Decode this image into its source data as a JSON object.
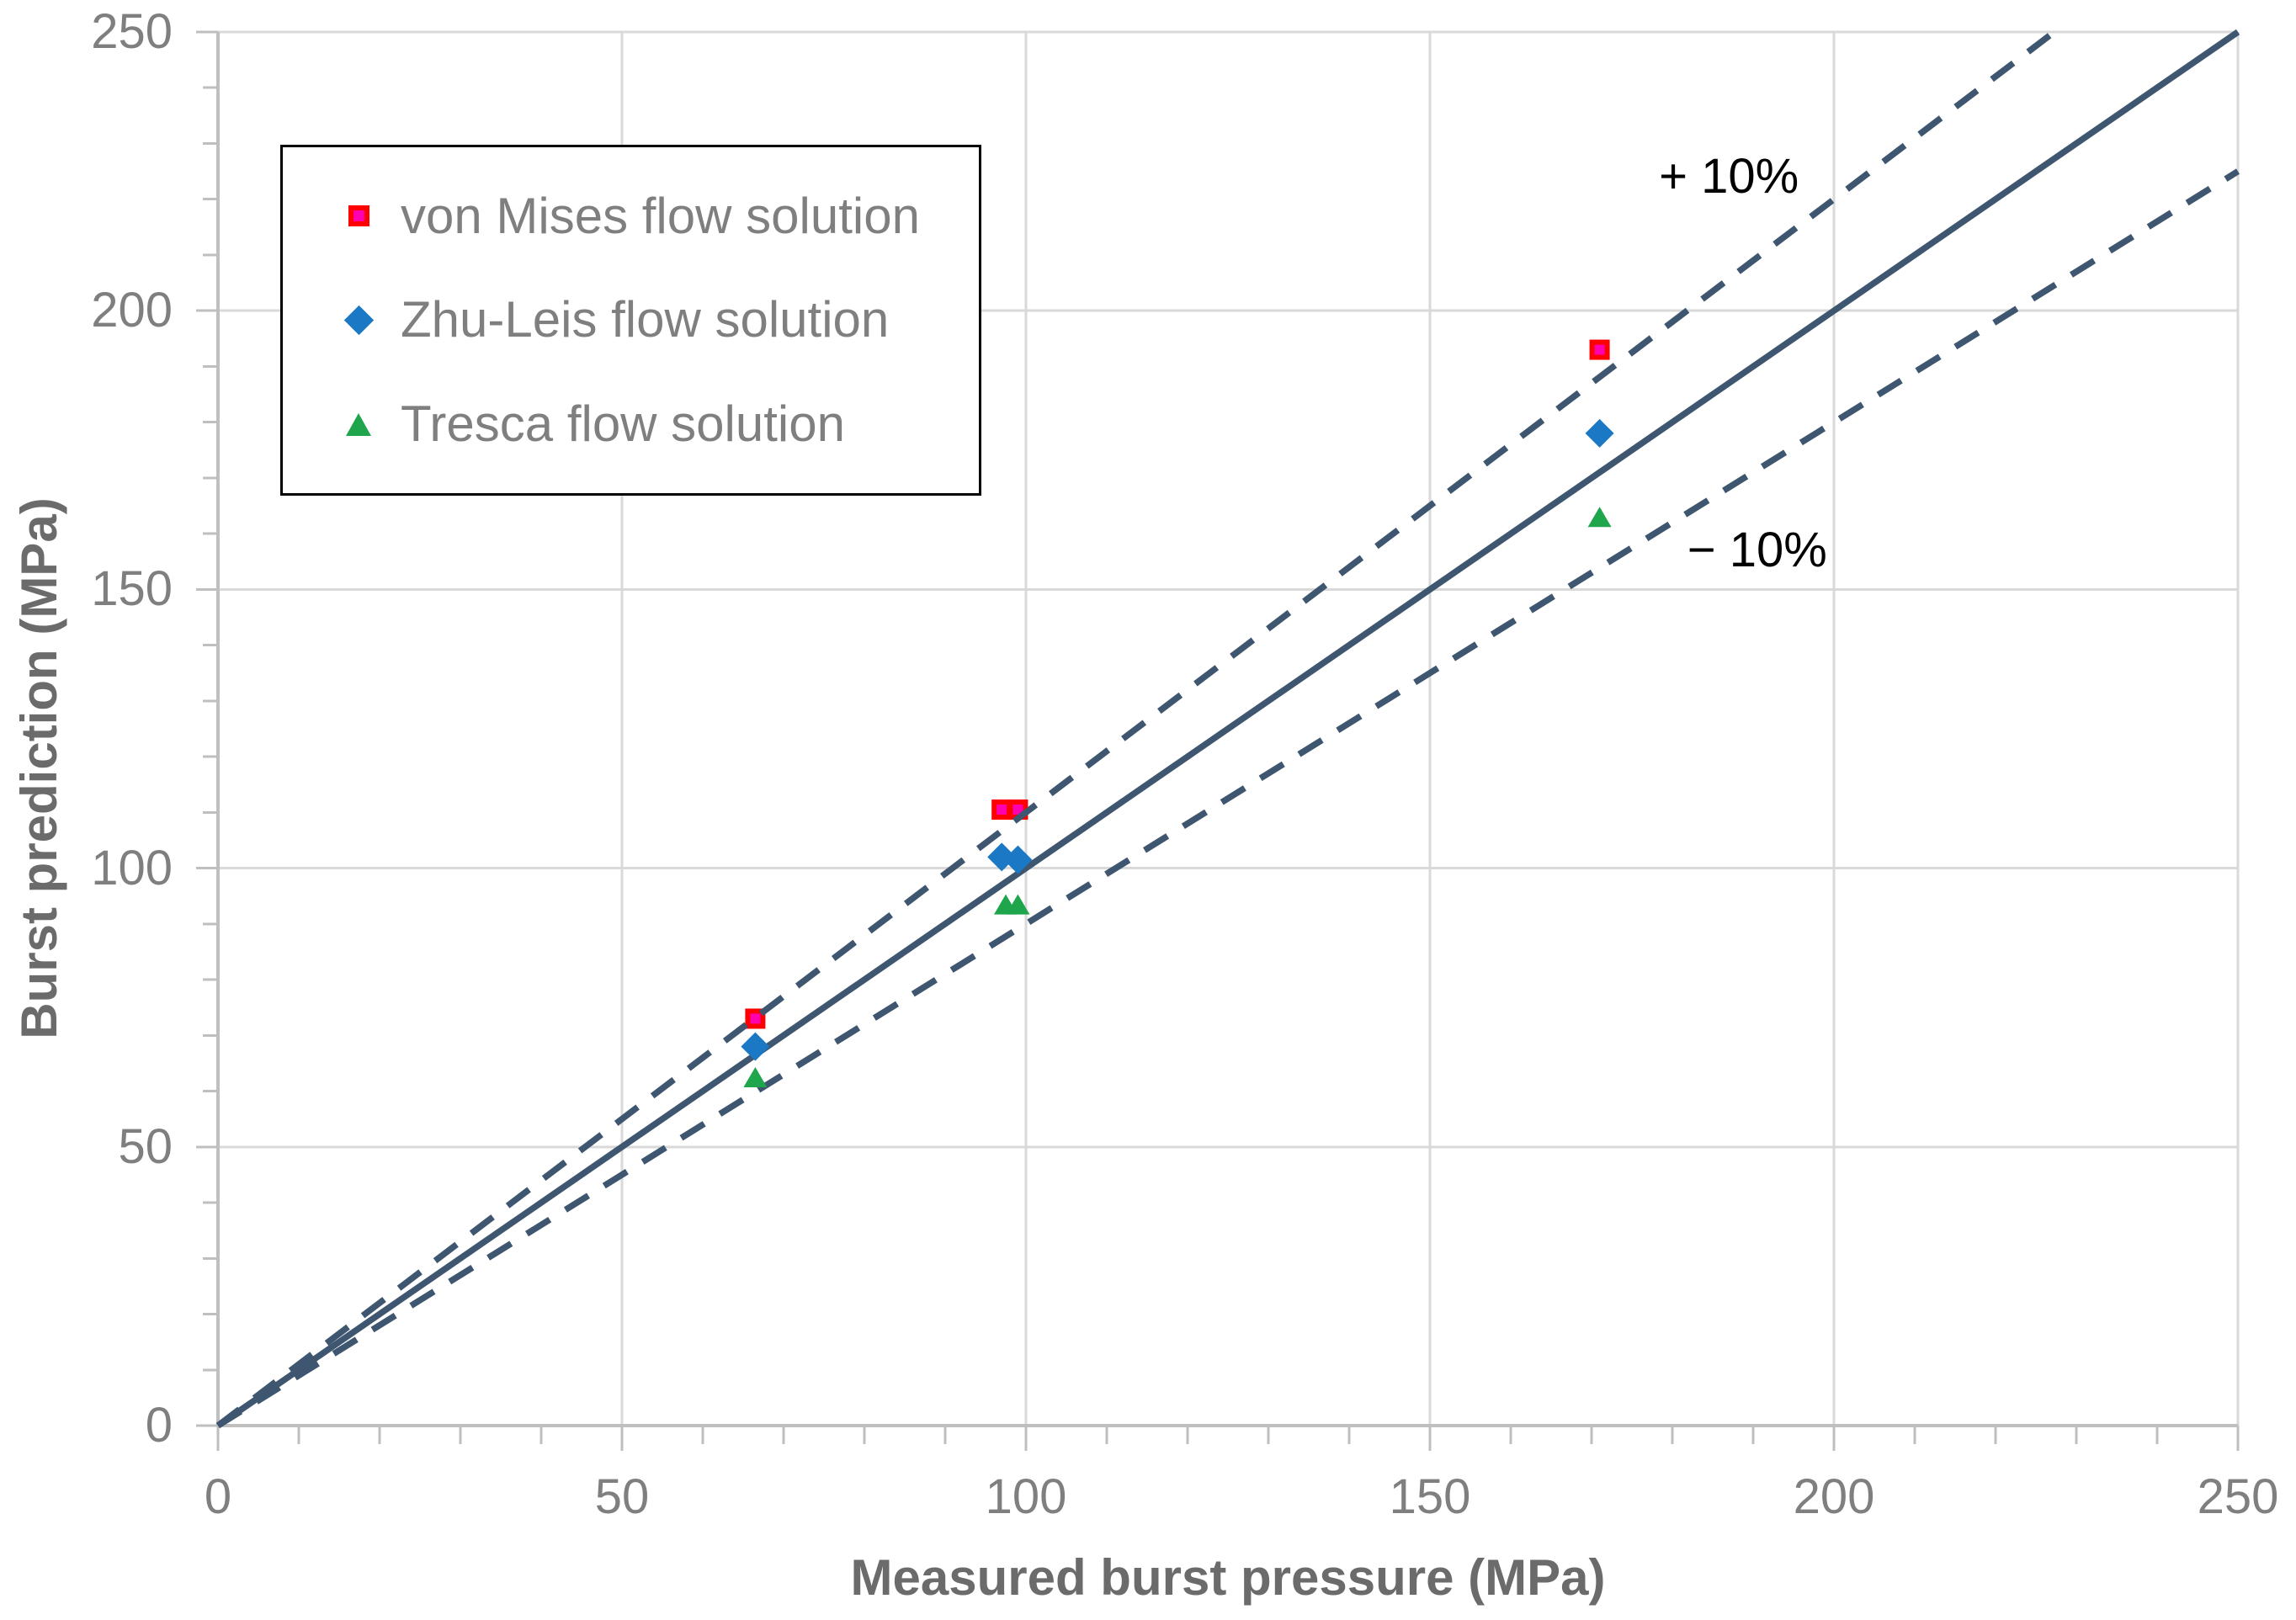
{
  "chart_data": {
    "type": "scatter",
    "title": "",
    "xlabel": "Measured burst pressure (MPa)",
    "ylabel": "Burst prediction (MPa)",
    "xlim": [
      0,
      250
    ],
    "ylim": [
      0,
      250
    ],
    "xticks": [
      "0",
      "50",
      "100",
      "150",
      "200",
      "250"
    ],
    "yticks": [
      "0",
      "50",
      "100",
      "150",
      "200",
      "250"
    ],
    "xtick_values": [
      0,
      50,
      100,
      150,
      200,
      250
    ],
    "ytick_values": [
      0,
      50,
      100,
      150,
      200,
      250
    ],
    "minor_tick_step": 10,
    "grid": true,
    "legend_position": "top-left",
    "series": [
      {
        "name": "von Mises flow solution",
        "marker": "square",
        "fill": "#FF00B0",
        "stroke": "#FF0000",
        "points": [
          [
            66.5,
            73
          ],
          [
            97,
            110.5
          ],
          [
            99,
            110.5
          ],
          [
            171,
            193
          ]
        ]
      },
      {
        "name": "Zhu-Leis flow solution",
        "marker": "diamond",
        "fill": "#1B78C4",
        "points": [
          [
            66.5,
            68
          ],
          [
            97,
            102
          ],
          [
            99,
            101.5
          ],
          [
            171,
            178
          ]
        ]
      },
      {
        "name": "Tresca flow solution",
        "marker": "triangle",
        "fill": "#1FA54C",
        "points": [
          [
            66.5,
            62.5
          ],
          [
            97.5,
            93.5
          ],
          [
            99,
            93.5
          ],
          [
            171,
            163
          ]
        ]
      }
    ],
    "reference_lines": [
      {
        "name": "identity",
        "slope": 1.0,
        "style": "solid"
      },
      {
        "name": "plus-10-percent",
        "slope": 1.1,
        "style": "dashed"
      },
      {
        "name": "minus-10-percent",
        "slope": 0.9,
        "style": "dashed"
      }
    ],
    "annotations": [
      {
        "text": "+ 10%",
        "x": 187,
        "y": 224
      },
      {
        "text": "− 10%",
        "x": 190.5,
        "y": 157
      }
    ],
    "colors": {
      "reference_line": "#3E566F",
      "gridline": "#D9D9D9",
      "axis_line": "#BFBFBF",
      "tick_label": "#7F7F7F",
      "axis_title": "#6B6B6B",
      "legend_text": "#7F7F7F",
      "legend_border": "#000000",
      "annotation_text": "#000000"
    }
  }
}
